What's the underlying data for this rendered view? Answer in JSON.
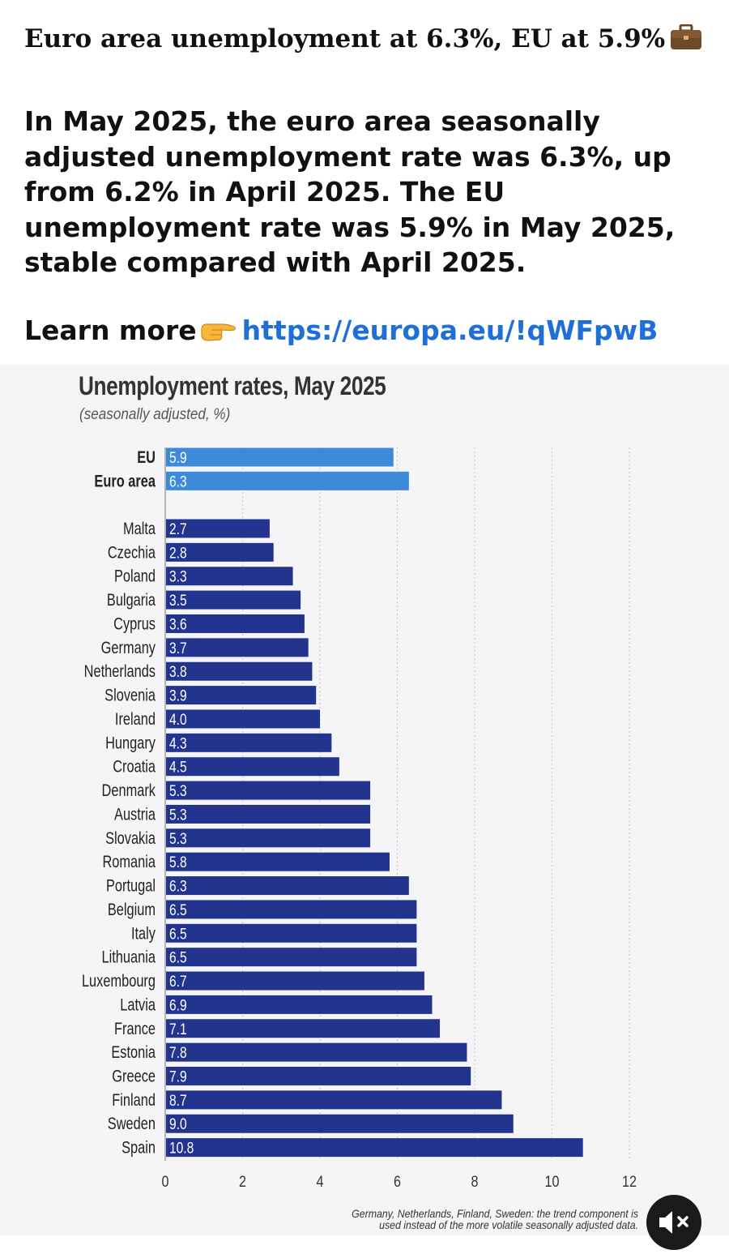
{
  "post": {
    "headline": "Euro area unemployment at 6.3%, EU at 5.9%",
    "headline_icon": "briefcase-icon",
    "body": "In May 2025, the euro area seasonally adjusted unemployment rate was 6.3%, up from 6.2% in April 2025. The EU unemployment rate was 5.9% in May 2025, stable compared with April 2025.",
    "learn_more_label": "Learn more",
    "learn_more_icon": "pointing-hand-icon",
    "link": "https://europa.eu/!qWFpwB",
    "link_color": "#1f6fd6"
  },
  "chart_data": {
    "type": "bar",
    "orientation": "horizontal",
    "title": "Unemployment rates, May 2025",
    "subtitle": "(seasonally adjusted, %)",
    "xlim": [
      0,
      12
    ],
    "xticks": [
      "0",
      "2",
      "4",
      "6",
      "8",
      "10",
      "12"
    ],
    "grid": "vertical dashed",
    "aggregate_color": "#3c8ad8",
    "country_color": "#23348f",
    "groups": [
      {
        "name": "aggregates",
        "categories": [
          "EU",
          "Euro area"
        ],
        "values": [
          5.9,
          6.3
        ],
        "labels": [
          "5.9",
          "6.3"
        ]
      },
      {
        "name": "countries",
        "categories": [
          "Malta",
          "Czechia",
          "Poland",
          "Bulgaria",
          "Cyprus",
          "Germany",
          "Netherlands",
          "Slovenia",
          "Ireland",
          "Hungary",
          "Croatia",
          "Denmark",
          "Austria",
          "Slovakia",
          "Romania",
          "Portugal",
          "Belgium",
          "Italy",
          "Lithuania",
          "Luxembourg",
          "Latvia",
          "France",
          "Estonia",
          "Greece",
          "Finland",
          "Sweden",
          "Spain"
        ],
        "values": [
          2.7,
          2.8,
          3.3,
          3.5,
          3.6,
          3.7,
          3.8,
          3.9,
          4.0,
          4.3,
          4.5,
          5.3,
          5.3,
          5.3,
          5.8,
          6.3,
          6.5,
          6.5,
          6.5,
          6.7,
          6.9,
          7.1,
          7.8,
          7.9,
          8.7,
          9.0,
          10.8
        ],
        "labels": [
          "2.7",
          "2.8",
          "3.3",
          "3.5",
          "3.6",
          "3.7",
          "3.8",
          "3.9",
          "4.0",
          "4.3",
          "4.5",
          "5.3",
          "5.3",
          "5.3",
          "5.8",
          "6.3",
          "6.5",
          "6.5",
          "6.5",
          "6.7",
          "6.9",
          "7.1",
          "7.8",
          "7.9",
          "8.7",
          "9.0",
          "10.8"
        ]
      }
    ],
    "footnote": "Germany, Netherlands, Finland, Sweden: the trend component is used instead of the more volatile seasonally adjusted data."
  },
  "controls": {
    "mute_icon": "speaker-muted-icon"
  }
}
